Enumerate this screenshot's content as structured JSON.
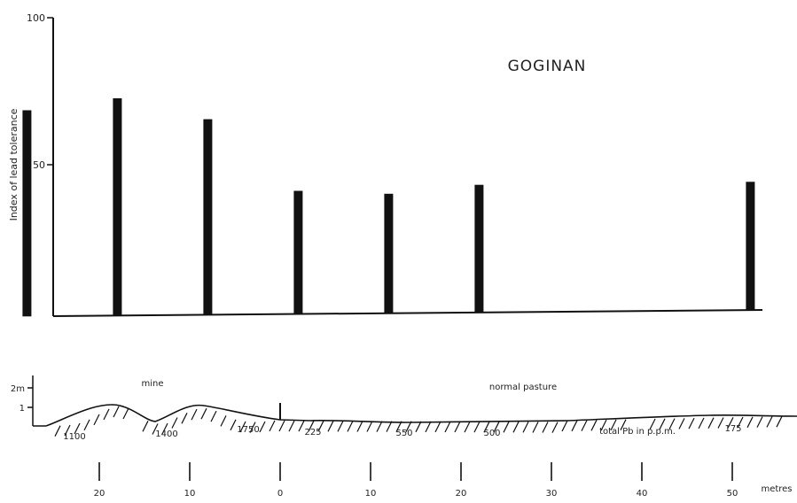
{
  "chart_data": {
    "type": "bar",
    "title": "GOGINAN",
    "ylabel": "Index of lead tolerance",
    "ylim": [
      0,
      100
    ],
    "y_ticks": [
      "100",
      "50"
    ],
    "x": [
      -28,
      -18,
      -8,
      2,
      12,
      22,
      52
    ],
    "values": [
      69,
      73,
      66,
      42,
      41,
      44,
      45
    ],
    "xlim": [
      -35,
      57
    ],
    "profile": {
      "height_ticks": [
        "2m",
        "1"
      ],
      "zone_labels": [
        "mine",
        "normal pasture"
      ],
      "pb_values": [
        "1100",
        "1400",
        "1750",
        "225",
        "550",
        "500",
        "175"
      ],
      "pb_label": "total Pb in p.p.m."
    },
    "distance_axis": {
      "values": [
        -20,
        -10,
        0,
        10,
        20,
        30,
        40,
        50
      ],
      "labels": [
        "20",
        "10",
        "0",
        "10",
        "20",
        "30",
        "40",
        "50"
      ],
      "unit": "metres"
    }
  }
}
